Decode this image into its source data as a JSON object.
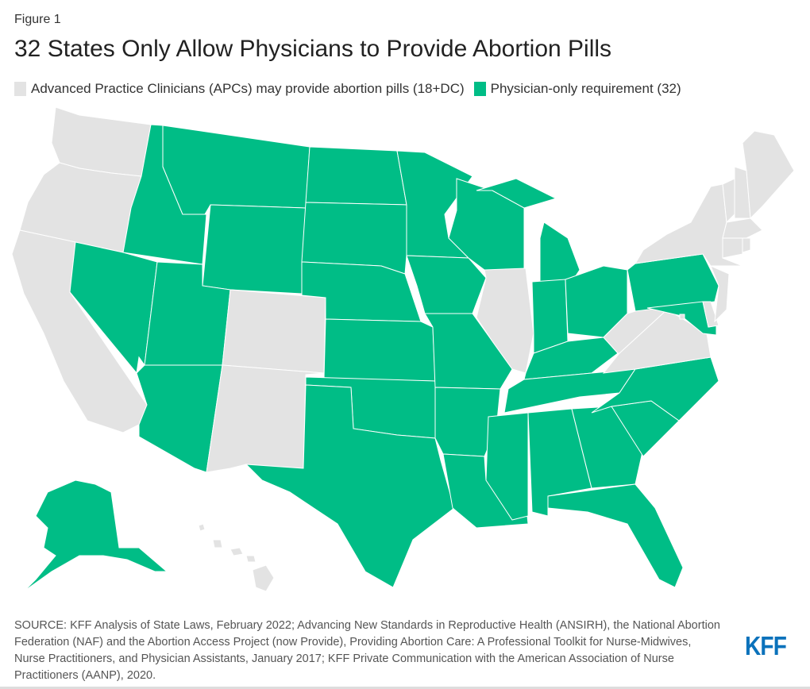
{
  "figure_label": "Figure 1",
  "title": "32 States Only Allow Physicians to Provide Abortion Pills",
  "legend": [
    {
      "key": "apc",
      "label": "Advanced Practice Clinicians (APCs) may provide abortion pills (18+DC)",
      "color": "#e3e3e3"
    },
    {
      "key": "physician",
      "label": "Physician-only requirement (32)",
      "color": "#00bd86"
    }
  ],
  "states": {
    "WA": "apc",
    "OR": "apc",
    "CA": "apc",
    "CO": "apc",
    "NM": "apc",
    "IL": "apc",
    "WV": "apc",
    "VA": "apc",
    "NY": "apc",
    "VT": "apc",
    "NH": "apc",
    "ME": "apc",
    "MA": "apc",
    "RI": "apc",
    "CT": "apc",
    "NJ": "apc",
    "DE": "apc",
    "HI": "apc",
    "DC": "apc",
    "AK": "physician",
    "AZ": "physician",
    "NV": "physician",
    "ID": "physician",
    "MT": "physician",
    "WY": "physician",
    "UT": "physician",
    "ND": "physician",
    "SD": "physician",
    "NE": "physician",
    "KS": "physician",
    "OK": "physician",
    "TX": "physician",
    "MN": "physician",
    "IA": "physician",
    "MO": "physician",
    "AR": "physician",
    "LA": "physician",
    "WI": "physician",
    "MI": "physician",
    "IN": "physician",
    "OH": "physician",
    "KY": "physician",
    "TN": "physician",
    "MS": "physician",
    "AL": "physician",
    "GA": "physician",
    "FL": "physician",
    "SC": "physician",
    "NC": "physician",
    "PA": "physician",
    "MD": "physician"
  },
  "source": "SOURCE: KFF Analysis of State Laws, February 2022; Advancing New Standards in Reproductive Health (ANSIRH), the National Abortion Federation (NAF) and the Abortion Access Project (now Provide), Providing Abortion Care: A Professional Toolkit for Nurse-Midwives, Nurse Practitioners, and Physician Assistants, January 2017; KFF Private Communication with the American Association of Nurse Practitioners (AANP), 2020.",
  "logo": "KFF"
}
